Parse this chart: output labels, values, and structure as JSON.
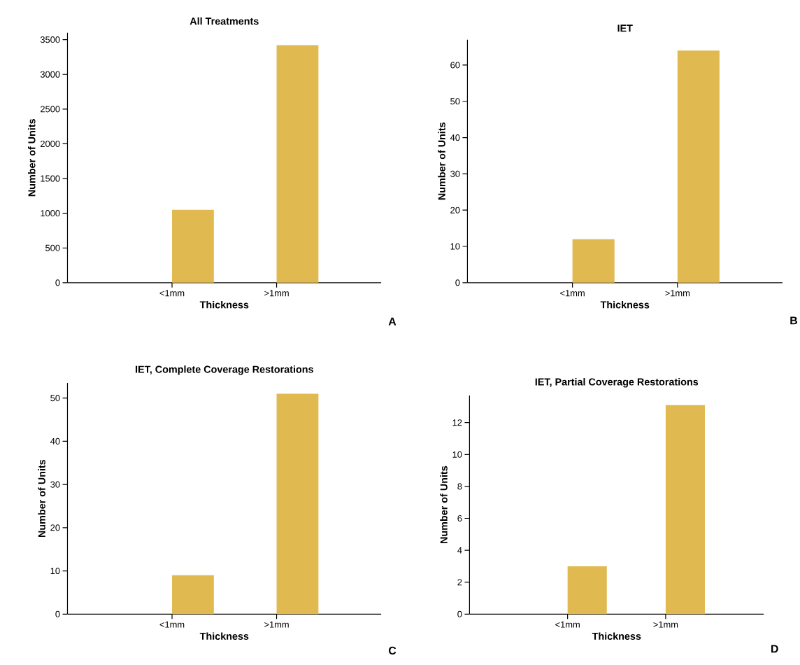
{
  "chart_data": [
    {
      "type": "bar",
      "title": "All Treatments",
      "xlabel": "Thickness",
      "ylabel": "Number of Units",
      "categories": [
        "<1mm",
        ">1mm"
      ],
      "values": [
        1050,
        3420
      ],
      "color": "#e0b951",
      "ylim": [
        0,
        3600
      ],
      "yticks": [
        0,
        500,
        1000,
        1500,
        2000,
        2500,
        3000,
        3500
      ],
      "annotations": [
        "A"
      ]
    },
    {
      "type": "bar",
      "title": "IET",
      "xlabel": "Thickness",
      "ylabel": "Number of Units",
      "categories": [
        "<1mm",
        ">1mm"
      ],
      "values": [
        12,
        64
      ],
      "color": "#e0b951",
      "ylim": [
        0,
        67
      ],
      "yticks": [
        0,
        10,
        20,
        30,
        40,
        50,
        60
      ],
      "annotations": [
        "B"
      ]
    },
    {
      "type": "bar",
      "title": "IET, Complete Coverage Restorations",
      "xlabel": "Thickness",
      "ylabel": "Number of Units",
      "categories": [
        "<1mm",
        ">1mm"
      ],
      "values": [
        9,
        51
      ],
      "color": "#e0b951",
      "ylim": [
        0,
        53.5
      ],
      "yticks": [
        0,
        10,
        20,
        30,
        40,
        50
      ],
      "annotations": [
        "C"
      ]
    },
    {
      "type": "bar",
      "title": "IET, Partial Coverage Restorations",
      "xlabel": "Thickness",
      "ylabel": "Number of Units",
      "categories": [
        "<1mm",
        ">1mm"
      ],
      "values": [
        3,
        13.1
      ],
      "color": "#e0b951",
      "ylim": [
        0,
        13.7
      ],
      "yticks": [
        0,
        2,
        4,
        6,
        8,
        10,
        12
      ],
      "annotations": [
        "D"
      ]
    }
  ]
}
